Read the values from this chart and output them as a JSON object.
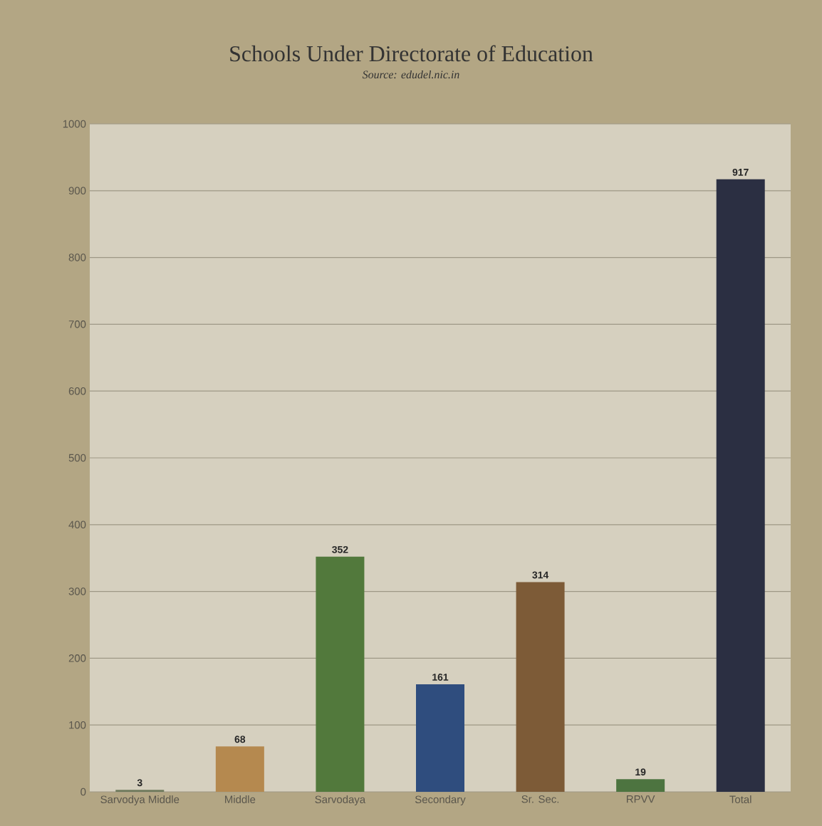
{
  "chart_data": {
    "type": "bar",
    "title": "Schools Under Directorate of Education",
    "annotations": [
      "Source: edudel.nic.in"
    ],
    "categories": [
      "Sarvodya Middle",
      "Middle",
      "Sarvodaya",
      "Secondary",
      "Sr. Sec.",
      "RPVV",
      "Total"
    ],
    "values": [
      3,
      68,
      352,
      161,
      314,
      19,
      917
    ],
    "colors": [
      "#6f7a5c",
      "#b5894f",
      "#52793c",
      "#2f4d7e",
      "#7d5b37",
      "#4d7440",
      "#2b2f42"
    ],
    "ylim": [
      0,
      1000
    ],
    "yticks": [
      0,
      100,
      200,
      300,
      400,
      500,
      600,
      700,
      800,
      900,
      1000
    ],
    "grid": "y",
    "data_labels": true
  }
}
